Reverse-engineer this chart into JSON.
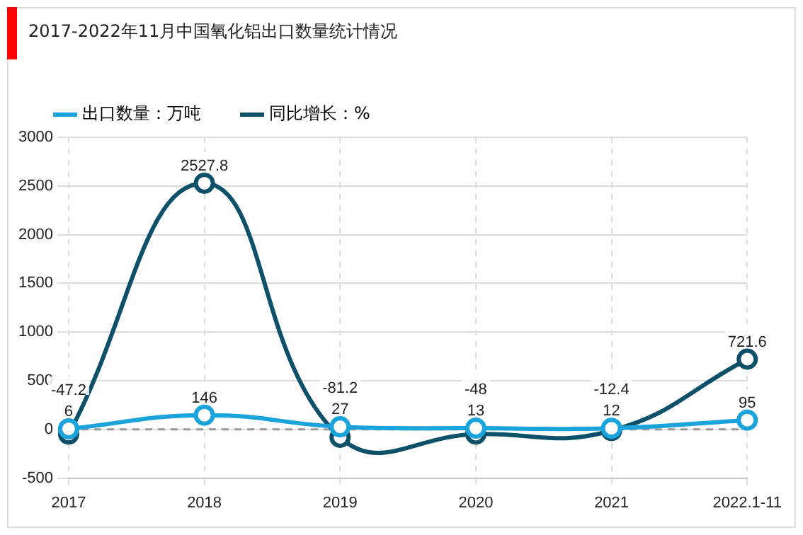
{
  "chart_data": {
    "type": "line",
    "title": "2017-2022年11月中国氧化铝出口数量统计情况",
    "categories": [
      "2017",
      "2018",
      "2019",
      "2020",
      "2021",
      "2022.1-11"
    ],
    "series": [
      {
        "name": "出口数量：万吨",
        "color": "#1ba3dc",
        "values": [
          6,
          146,
          27,
          13,
          12,
          95
        ]
      },
      {
        "name": "同比增长：%",
        "color": "#0d5069",
        "values": [
          -47.2,
          2527.8,
          -81.2,
          -48,
          -12.4,
          721.6
        ]
      }
    ],
    "ylim": [
      -500,
      3000
    ],
    "yticks": [
      -500,
      0,
      500,
      1000,
      1500,
      2000,
      2500,
      3000
    ],
    "ref_lines": [
      {
        "axis": "y",
        "value": 0,
        "color": "#999999",
        "line_style": "dashed"
      }
    ],
    "grid": true,
    "legend": "top",
    "marker": "circle",
    "data_labels": true
  }
}
